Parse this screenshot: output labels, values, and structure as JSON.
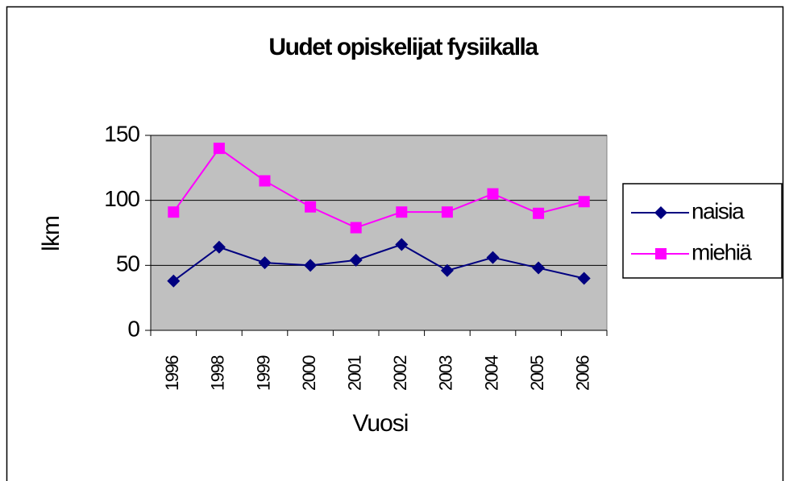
{
  "chart_data": {
    "type": "line",
    "title": "Uudet opiskelijat fysiikalla",
    "x_label": "Vuosi",
    "y_label": "lkm",
    "categories": [
      "1996",
      "1998",
      "1999",
      "2000",
      "2001",
      "2002",
      "2003",
      "2004",
      "2005",
      "2006"
    ],
    "series": [
      {
        "name": "naisia",
        "color": "#000080",
        "marker": "diamond",
        "values": [
          38,
          64,
          52,
          50,
          54,
          66,
          46,
          56,
          48,
          40
        ]
      },
      {
        "name": "miehiä",
        "color": "#ff00ff",
        "marker": "square",
        "values": [
          91,
          140,
          115,
          95,
          79,
          91,
          91,
          105,
          90,
          99
        ]
      }
    ],
    "ylim": [
      0,
      150
    ],
    "yticks": [
      0,
      50,
      100,
      150
    ],
    "grid": true,
    "legend": "right"
  }
}
